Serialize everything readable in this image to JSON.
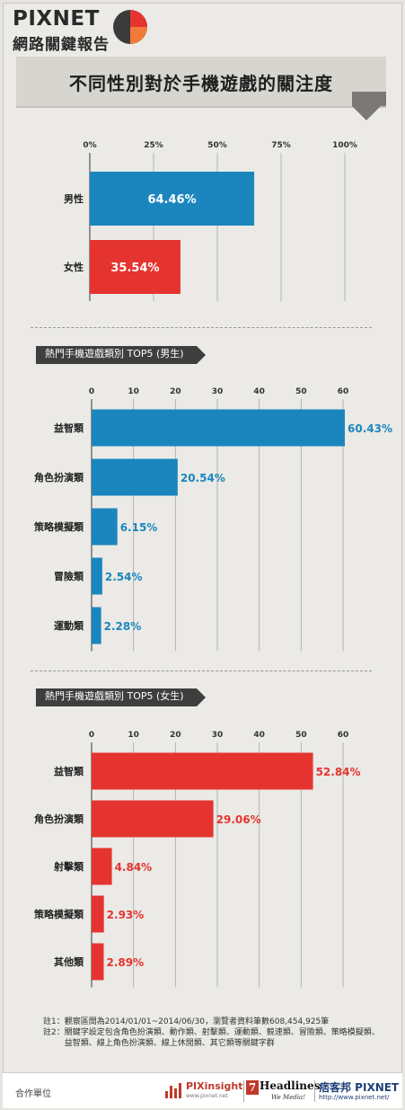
{
  "header": {
    "logo_main": "PIXNET",
    "logo_sub": "網路關鍵報告",
    "title": "不同性別對於手機遊戲的關注度"
  },
  "colors": {
    "male": "#1b86be",
    "female": "#e5342f",
    "label_bg": "#3e3e3e"
  },
  "sections": {
    "male_top5_label": "熱門手機遊戲類別 TOP5 (男生)",
    "female_top5_label": "熱門手機遊戲類別 TOP5 (女生)"
  },
  "chart_data": [
    {
      "type": "bar",
      "orientation": "horizontal",
      "title": "不同性別對於手機遊戲的關注度",
      "categories": [
        "男性",
        "女性"
      ],
      "values": [
        64.46,
        35.54
      ],
      "value_labels": [
        "64.46%",
        "35.54%"
      ],
      "colors": [
        "#1b86be",
        "#e5342f"
      ],
      "xlim": [
        0,
        100
      ],
      "xticks": [
        "0%",
        "25%",
        "50%",
        "75%",
        "100%"
      ],
      "xtick_values": [
        0,
        25,
        50,
        75,
        100
      ],
      "grid": true
    },
    {
      "type": "bar",
      "orientation": "horizontal",
      "title": "熱門手機遊戲類別 TOP5 (男生)",
      "categories": [
        "益智類",
        "角色扮演類",
        "策略模擬類",
        "冒險類",
        "運動類"
      ],
      "values": [
        60.43,
        20.54,
        6.15,
        2.54,
        2.28
      ],
      "value_labels": [
        "60.43%",
        "20.54%",
        "6.15%",
        "2.54%",
        "2.28%"
      ],
      "color": "#1b86be",
      "xlim": [
        0,
        60
      ],
      "xticks": [
        "0",
        "10",
        "20",
        "30",
        "40",
        "50",
        "60"
      ],
      "xtick_values": [
        0,
        10,
        20,
        30,
        40,
        50,
        60
      ],
      "grid": true
    },
    {
      "type": "bar",
      "orientation": "horizontal",
      "title": "熱門手機遊戲類別 TOP5 (女生)",
      "categories": [
        "益智類",
        "角色扮演類",
        "射擊類",
        "策略模擬類",
        "其他類"
      ],
      "values": [
        52.84,
        29.06,
        4.84,
        2.93,
        2.89
      ],
      "value_labels": [
        "52.84%",
        "29.06%",
        "4.84%",
        "2.93%",
        "2.89%"
      ],
      "color": "#e5342f",
      "xlim": [
        0,
        60
      ],
      "xticks": [
        "0",
        "10",
        "20",
        "30",
        "40",
        "50",
        "60"
      ],
      "xtick_values": [
        0,
        10,
        20,
        30,
        40,
        50,
        60
      ],
      "grid": true
    }
  ],
  "notes": [
    {
      "key": "註1：",
      "text": "觀察區間為2014/01/01~2014/06/30，瀏覽者資料筆數608,454,925筆"
    },
    {
      "key": "註2：",
      "text": "關鍵字設定包含角色扮演類、動作類、射擊類、運動類、競速類、冒險類、策略模擬類、益智類、線上角色扮演類、線上休閒類、其它類等關鍵字群"
    }
  ],
  "footer": {
    "label": "合作單位",
    "pix_name": "PIXinsight",
    "pix_url": "www.pixnet.net",
    "h7_mark": "7",
    "h7_name": "Headlines",
    "h7_tag": "We Media!",
    "pxn_name": "痞客邦 PIXNET",
    "pxn_url": "http://www.pixnet.net/"
  }
}
